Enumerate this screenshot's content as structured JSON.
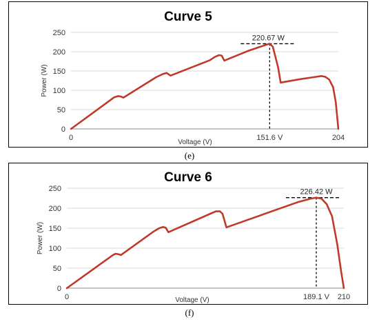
{
  "chart_data": [
    {
      "type": "line",
      "title": "Curve 5",
      "panel_label": "(e)",
      "xlabel": "Voltage (V)",
      "ylabel": "Power (W)",
      "ylim": [
        0,
        250
      ],
      "yticks": [
        0,
        50,
        100,
        150,
        200,
        250
      ],
      "xlim": [
        0,
        204
      ],
      "xtick_labels": [
        {
          "value": 0,
          "label": "0"
        },
        {
          "value": 151.6,
          "label": "151.6 V"
        },
        {
          "value": 204,
          "label": "204"
        }
      ],
      "grid": "horizontal",
      "series": [
        {
          "color": "#c0392b",
          "points": [
            [
              0,
              0
            ],
            [
              33,
              82
            ],
            [
              36,
              85
            ],
            [
              38,
              84
            ],
            [
              40,
              81
            ],
            [
              65,
              134
            ],
            [
              70,
              142
            ],
            [
              73,
              145
            ],
            [
              76,
              138
            ],
            [
              100,
              170
            ],
            [
              106,
              178
            ],
            [
              110,
              187
            ],
            [
              113,
              191
            ],
            [
              115,
              190
            ],
            [
              117,
              177
            ],
            [
              135,
              202
            ],
            [
              148,
              217
            ],
            [
              151.6,
              220.67
            ],
            [
              154,
              213
            ],
            [
              158,
              160
            ],
            [
              160,
              120
            ],
            [
              175,
              129
            ],
            [
              185,
              134
            ],
            [
              191,
              137
            ],
            [
              194,
              135
            ],
            [
              197,
              128
            ],
            [
              200,
              108
            ],
            [
              202,
              70
            ],
            [
              204,
              0
            ]
          ]
        }
      ],
      "annotation": {
        "label": "220.67 W",
        "x": 151.6,
        "y": 220.67
      }
    },
    {
      "type": "line",
      "title": "Curve 6",
      "panel_label": "(f)",
      "xlabel": "Voltage (V)",
      "ylabel": "Power (W)",
      "ylim": [
        0,
        250
      ],
      "yticks": [
        0,
        50,
        100,
        150,
        200,
        250
      ],
      "xlim": [
        0,
        210
      ],
      "xtick_labels": [
        {
          "value": 0,
          "label": "0"
        },
        {
          "value": 189.1,
          "label": "189.1  V"
        },
        {
          "value": 210,
          "label": "210"
        }
      ],
      "grid": "horizontal",
      "series": [
        {
          "color": "#c0392b",
          "points": [
            [
              0,
              0
            ],
            [
              35,
              83
            ],
            [
              37,
              86
            ],
            [
              39,
              85
            ],
            [
              41,
              83
            ],
            [
              66,
              142
            ],
            [
              70,
              150
            ],
            [
              73,
              153
            ],
            [
              75,
              151
            ],
            [
              77,
              140
            ],
            [
              110,
              188
            ],
            [
              113,
              192
            ],
            [
              116,
              192
            ],
            [
              118,
              186
            ],
            [
              121,
              152
            ],
            [
              175,
              215
            ],
            [
              185,
              224
            ],
            [
              189.1,
              226.42
            ],
            [
              193,
              224
            ],
            [
              197,
              210
            ],
            [
              201,
              180
            ],
            [
              205,
              110
            ],
            [
              208,
              40
            ],
            [
              210,
              0
            ]
          ]
        }
      ],
      "annotation": {
        "label": "226.42 W",
        "x": 189.1,
        "y": 226.42
      }
    }
  ]
}
